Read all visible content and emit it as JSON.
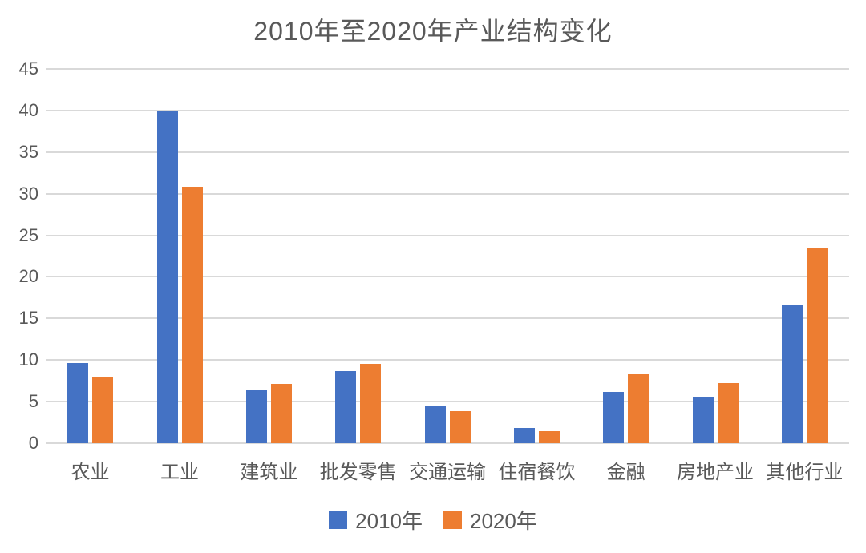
{
  "chart_data": {
    "type": "bar",
    "title": "2010年至2020年产业结构变化",
    "categories": [
      "农业",
      "工业",
      "建筑业",
      "批发零售",
      "交通运输",
      "住宿餐饮",
      "金融",
      "房地产业",
      "其他行业"
    ],
    "series": [
      {
        "name": "2010年",
        "color": "#4472C4",
        "values": [
          9.6,
          40.0,
          6.5,
          8.7,
          4.5,
          1.8,
          6.2,
          5.6,
          16.6
        ]
      },
      {
        "name": "2020年",
        "color": "#ED7D31",
        "values": [
          8.0,
          30.8,
          7.1,
          9.5,
          3.9,
          1.4,
          8.3,
          7.2,
          23.5
        ]
      }
    ],
    "ylim": [
      0,
      45
    ],
    "yticks": [
      0,
      5,
      10,
      15,
      20,
      25,
      30,
      35,
      40,
      45
    ],
    "grid": true,
    "legend_position": "bottom"
  },
  "legend": {
    "items": [
      {
        "label": "2010年",
        "color": "#4472C4"
      },
      {
        "label": "2020年",
        "color": "#ED7D31"
      }
    ]
  },
  "colors": {
    "series_2010": "#4472C4",
    "series_2020": "#ED7D31",
    "text": "#595959",
    "gridline": "#D9D9D9",
    "background": "#FFFFFF"
  }
}
